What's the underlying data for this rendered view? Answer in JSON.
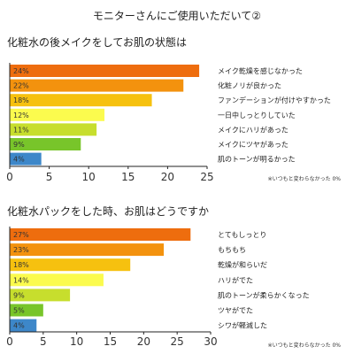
{
  "page_title": "モニターさんにご使用いただいて②",
  "chart_data": [
    {
      "type": "bar",
      "orientation": "horizontal",
      "title": "化粧水の後メイクをしてお肌の状態は",
      "categories": [
        "メイク乾燥を感じなかった",
        "化粧ノリが良かった",
        "ファンデーションが付けやすかった",
        "一日中しっとりしていた",
        "メイクにハリがあった",
        "メイクにツヤがあった",
        "肌のトーンが明るかった"
      ],
      "values": [
        24,
        22,
        18,
        12,
        11,
        9,
        4
      ],
      "value_labels": [
        "24%",
        "22%",
        "18%",
        "12%",
        "11%",
        "9%",
        "4%"
      ],
      "xlim": [
        0,
        25
      ],
      "xticks": [
        "0",
        "5",
        "10",
        "15",
        "20",
        "25"
      ],
      "footnote": "※いつもと変わらなかった 0%",
      "colors": [
        "#ee6d0e",
        "#f3920e",
        "#f6c10f",
        "#fbfb4e",
        "#c7de2d",
        "#78c52a",
        "#3d87c9"
      ]
    },
    {
      "type": "bar",
      "orientation": "horizontal",
      "title": "化粧水パックをした時、お肌はどうですか",
      "categories": [
        "とてもしっとり",
        "もちもち",
        "乾燥が和らいだ",
        "ハリがでた",
        "肌のトーンが柔らかくなった",
        "ツヤがでた",
        "シワが軽減した"
      ],
      "values": [
        27,
        23,
        18,
        14,
        9,
        5,
        4
      ],
      "value_labels": [
        "27%",
        "23%",
        "18%",
        "14%",
        "9%",
        "5%",
        "4%"
      ],
      "xlim": [
        0,
        30
      ],
      "xticks": [
        "0",
        "5",
        "10",
        "15",
        "20",
        "25",
        "30"
      ],
      "footnote": "※いつもと変わらなかった 0%",
      "colors": [
        "#ee6d0e",
        "#f3920e",
        "#f6c10f",
        "#fbfb4e",
        "#c7de2d",
        "#78c52a",
        "#3d87c9"
      ]
    }
  ]
}
